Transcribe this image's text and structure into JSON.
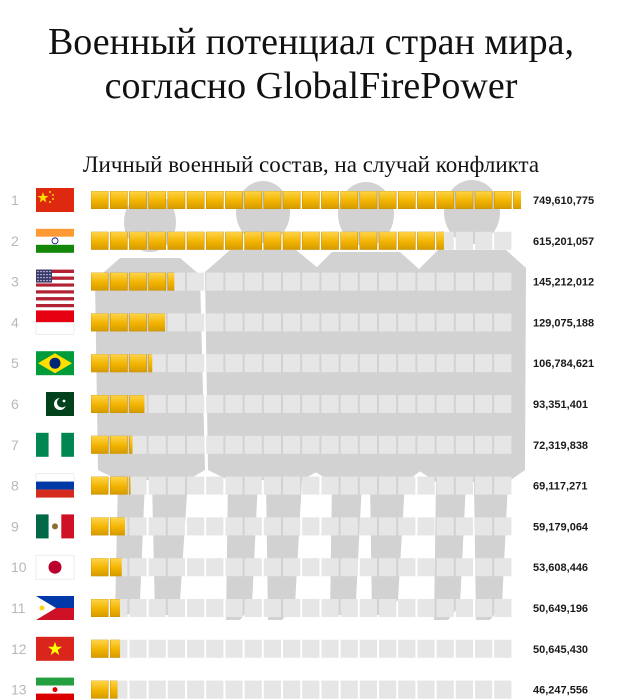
{
  "title_line1": "Военный потенциал стран мира,",
  "title_line2": "согласно GlobalFirePower",
  "chart_data": {
    "type": "bar",
    "orientation": "horizontal",
    "title": "Военный потенциал стран мира, согласно GlobalFirePower",
    "subtitle": "Личный военный состав, на случай конфликта",
    "ranks": [
      "1",
      "2",
      "3",
      "4",
      "5",
      "6",
      "7",
      "8",
      "9",
      "10",
      "11",
      "12",
      "13"
    ],
    "countries": [
      "China",
      "India",
      "United States",
      "Indonesia",
      "Brazil",
      "Pakistan",
      "Nigeria",
      "Russia",
      "Mexico",
      "Japan",
      "Philippines",
      "Vietnam",
      "Iran"
    ],
    "values": [
      749610775,
      615201057,
      145212012,
      129075188,
      106784621,
      93351401,
      72319838,
      69117271,
      59179064,
      53608446,
      50649196,
      50645430,
      46247556
    ],
    "value_labels": [
      "749,610,775",
      "615,201,057",
      "145,212,012",
      "129,075,188",
      "106,784,621",
      "93,351,401",
      "72,319,838",
      "69,117,271",
      "59,179,064",
      "53,608,446",
      "50,649,196",
      "50,645,430",
      "46,247,556"
    ],
    "xlim": [
      0,
      749610775
    ],
    "bar_color": "#f2b300",
    "track_color": "#e6e6e6",
    "silhouette_color": "#cfcfcf",
    "flag_icons": [
      "flag-china-icon",
      "flag-india-icon",
      "flag-usa-icon",
      "flag-indonesia-icon",
      "flag-brazil-icon",
      "flag-pakistan-icon",
      "flag-nigeria-icon",
      "flag-russia-icon",
      "flag-mexico-icon",
      "flag-japan-icon",
      "flag-philippines-icon",
      "flag-vietnam-icon",
      "flag-iran-icon"
    ]
  }
}
